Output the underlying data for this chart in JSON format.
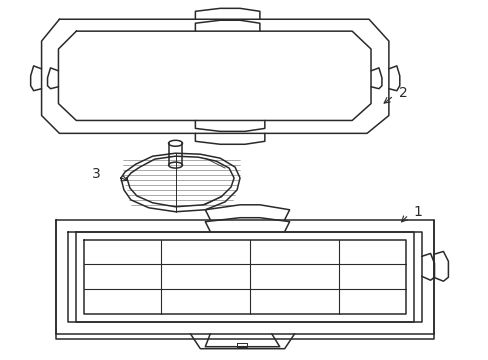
{
  "background_color": "#ffffff",
  "line_color": "#2a2a2a",
  "line_width": 1.1,
  "label_1": "1",
  "label_2": "2",
  "label_3": "3",
  "label_fontsize": 10,
  "figsize": [
    4.89,
    3.6
  ],
  "dpi": 100
}
